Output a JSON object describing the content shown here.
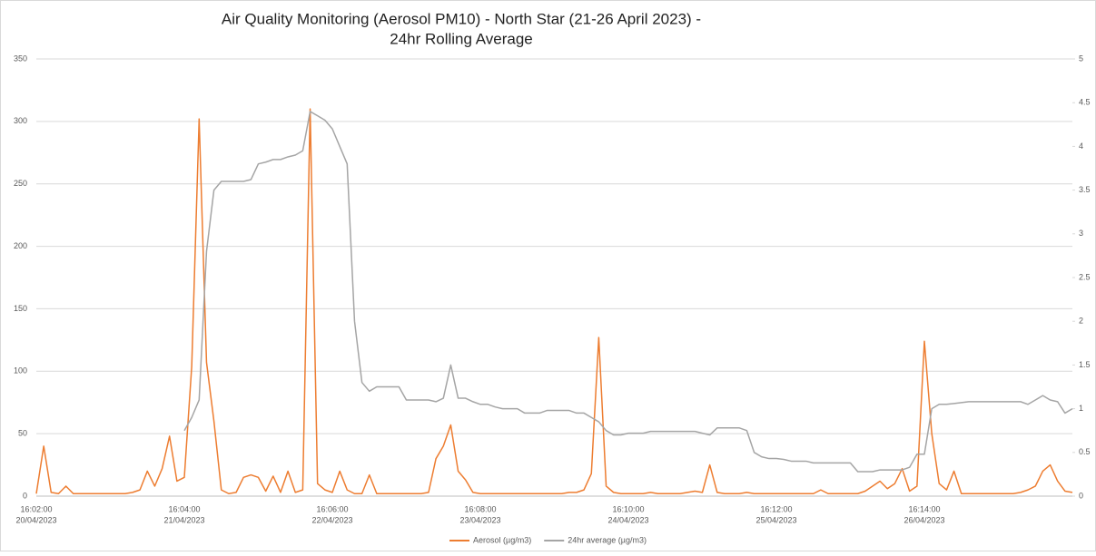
{
  "chart_data": {
    "type": "line",
    "title": [
      "Air Quality Monitoring (Aerosol PM10) - North Star (21-26 April 2023) -",
      "24hr Rolling Average"
    ],
    "categories": [
      [
        "16:02:00",
        "20/04/2023"
      ],
      null,
      null,
      null,
      null,
      null,
      null,
      null,
      null,
      null,
      null,
      null,
      null,
      null,
      null,
      null,
      null,
      null,
      null,
      null,
      [
        "16:04:00",
        "21/04/2023"
      ],
      null,
      null,
      null,
      null,
      null,
      null,
      null,
      null,
      null,
      null,
      null,
      null,
      null,
      null,
      null,
      null,
      null,
      null,
      null,
      [
        "16:06:00",
        "22/04/2023"
      ],
      null,
      null,
      null,
      null,
      null,
      null,
      null,
      null,
      null,
      null,
      null,
      null,
      null,
      null,
      null,
      null,
      null,
      null,
      null,
      [
        "16:08:00",
        "23/04/2023"
      ],
      null,
      null,
      null,
      null,
      null,
      null,
      null,
      null,
      null,
      null,
      null,
      null,
      null,
      null,
      null,
      null,
      null,
      null,
      null,
      [
        "16:10:00",
        "24/04/2023"
      ],
      null,
      null,
      null,
      null,
      null,
      null,
      null,
      null,
      null,
      null,
      null,
      null,
      null,
      null,
      null,
      null,
      null,
      null,
      null,
      [
        "16:12:00",
        "25/04/2023"
      ],
      null,
      null,
      null,
      null,
      null,
      null,
      null,
      null,
      null,
      null,
      null,
      null,
      null,
      null,
      null,
      null,
      null,
      null,
      null,
      [
        "16:14:00",
        "26/04/2023"
      ],
      null,
      null,
      null,
      null,
      null,
      null,
      null,
      null,
      null,
      null,
      null,
      null,
      null,
      null,
      null,
      null,
      null,
      null,
      null,
      null
    ],
    "series": [
      {
        "name": "Aerosol (µg/m3)",
        "color": "#ed7d31",
        "values": [
          2,
          40,
          3,
          2,
          8,
          2,
          2,
          2,
          2,
          2,
          2,
          2,
          2,
          3,
          5,
          20,
          8,
          22,
          48,
          12,
          15,
          104,
          302,
          107,
          60,
          5,
          2,
          3,
          15,
          17,
          15,
          4,
          16,
          3,
          20,
          3,
          5,
          310,
          10,
          5,
          3,
          20,
          5,
          2,
          2,
          17,
          2,
          2,
          2,
          2,
          2,
          2,
          2,
          3,
          30,
          40,
          57,
          20,
          13,
          3,
          2,
          2,
          2,
          2,
          2,
          2,
          2,
          2,
          2,
          2,
          2,
          2,
          3,
          3,
          5,
          18,
          127,
          8,
          3,
          2,
          2,
          2,
          2,
          3,
          2,
          2,
          2,
          2,
          3,
          4,
          3,
          25,
          3,
          2,
          2,
          2,
          3,
          2,
          2,
          2,
          2,
          2,
          2,
          2,
          2,
          2,
          5,
          2,
          2,
          2,
          2,
          2,
          4,
          8,
          12,
          6,
          10,
          22,
          4,
          8,
          124,
          50,
          10,
          5,
          20,
          2,
          2,
          2,
          2,
          2,
          2,
          2,
          2,
          3,
          5,
          8,
          20,
          25,
          12,
          4,
          3
        ]
      },
      {
        "name": "24hr average (µg/m3)",
        "color": "#a5a5a5",
        "axis": "y2",
        "values": [
          null,
          null,
          null,
          null,
          null,
          null,
          null,
          null,
          null,
          null,
          null,
          null,
          null,
          null,
          null,
          null,
          null,
          null,
          null,
          null,
          0.75,
          0.9,
          1.1,
          2.8,
          3.5,
          3.6,
          3.6,
          3.6,
          3.6,
          3.62,
          3.8,
          3.82,
          3.85,
          3.85,
          3.88,
          3.9,
          3.95,
          4.4,
          4.35,
          4.3,
          4.2,
          4.0,
          3.8,
          2.0,
          1.3,
          1.2,
          1.25,
          1.25,
          1.25,
          1.25,
          1.1,
          1.1,
          1.1,
          1.1,
          1.08,
          1.12,
          1.5,
          1.12,
          1.12,
          1.08,
          1.05,
          1.05,
          1.02,
          1.0,
          1.0,
          1.0,
          0.95,
          0.95,
          0.95,
          0.98,
          0.98,
          0.98,
          0.98,
          0.95,
          0.95,
          0.9,
          0.85,
          0.75,
          0.7,
          0.7,
          0.72,
          0.72,
          0.72,
          0.74,
          0.74,
          0.74,
          0.74,
          0.74,
          0.74,
          0.74,
          0.72,
          0.7,
          0.78,
          0.78,
          0.78,
          0.78,
          0.75,
          0.5,
          0.45,
          0.43,
          0.43,
          0.42,
          0.4,
          0.4,
          0.4,
          0.38,
          0.38,
          0.38,
          0.38,
          0.38,
          0.38,
          0.28,
          0.28,
          0.28,
          0.3,
          0.3,
          0.3,
          0.3,
          0.33,
          0.48,
          0.48,
          1.0,
          1.05,
          1.05,
          1.06,
          1.07,
          1.08,
          1.08,
          1.08,
          1.08,
          1.08,
          1.08,
          1.08,
          1.08,
          1.05,
          1.1,
          1.15,
          1.1,
          1.08,
          0.95,
          1.0
        ]
      }
    ],
    "ylim": [
      0,
      350
    ],
    "yticks": [
      0,
      50,
      100,
      150,
      200,
      250,
      300,
      350
    ],
    "y2lim": [
      0,
      5
    ],
    "y2ticks": [
      0,
      0.5,
      1,
      1.5,
      2,
      2.5,
      3,
      3.5,
      4,
      4.5,
      5
    ],
    "grid": true,
    "legend": "bottom"
  }
}
